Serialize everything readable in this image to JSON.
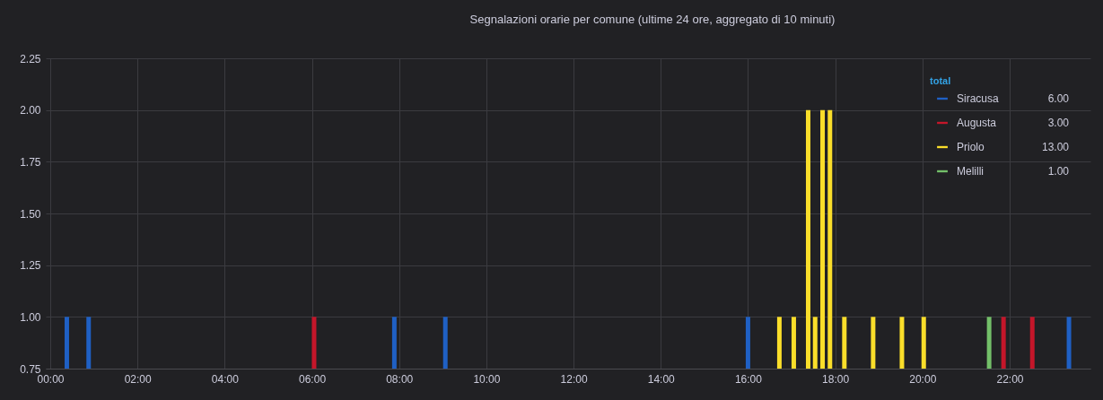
{
  "chart_data": {
    "type": "bar",
    "title": "Segnalazioni orarie per comune (ultime 24 ore, aggregato di 10 minuti)",
    "xlim": [
      0,
      23.75
    ],
    "xticks": [
      {
        "value": 0,
        "label": "00:00"
      },
      {
        "value": 2,
        "label": "02:00"
      },
      {
        "value": 4,
        "label": "04:00"
      },
      {
        "value": 6,
        "label": "06:00"
      },
      {
        "value": 8,
        "label": "08:00"
      },
      {
        "value": 10,
        "label": "10:00"
      },
      {
        "value": 12,
        "label": "12:00"
      },
      {
        "value": 14,
        "label": "14:00"
      },
      {
        "value": 16,
        "label": "16:00"
      },
      {
        "value": 18,
        "label": "18:00"
      },
      {
        "value": 20,
        "label": "20:00"
      },
      {
        "value": 22,
        "label": "22:00"
      }
    ],
    "ylim": [
      0.75,
      2.25
    ],
    "yticks": [
      {
        "value": 0.75,
        "label": "0.75"
      },
      {
        "value": 1,
        "label": "1.00"
      },
      {
        "value": 1.25,
        "label": "1.25"
      },
      {
        "value": 1.5,
        "label": "1.50"
      },
      {
        "value": 1.75,
        "label": "1.75"
      },
      {
        "value": 2,
        "label": "2.00"
      },
      {
        "value": 2.25,
        "label": "2.25"
      }
    ],
    "series": [
      {
        "name": "Siracusa",
        "color": "#1f60c4",
        "x": [
          0.38,
          0.88,
          7.89,
          9.06,
          16.0,
          23.36
        ],
        "values": [
          1,
          1,
          1,
          1,
          1,
          1
        ]
      },
      {
        "name": "Augusta",
        "color": "#c4162a",
        "x": [
          6.05,
          21.86,
          22.52
        ],
        "values": [
          1,
          1,
          1
        ]
      },
      {
        "name": "Priolo",
        "color": "#fade2a",
        "x": [
          16.72,
          17.05,
          17.38,
          17.54,
          17.71,
          17.88,
          18.21,
          18.87,
          19.53,
          20.03
        ],
        "values": [
          1,
          1,
          2,
          1,
          2,
          2,
          1,
          1,
          1,
          1
        ]
      },
      {
        "name": "Melilli",
        "color": "#73bf69",
        "x": [
          21.53
        ],
        "values": [
          1
        ]
      }
    ],
    "legend_title": "total",
    "annotations": [
      "6.00",
      "3.00",
      "13.00",
      "1.00"
    ],
    "legend": "top right",
    "grid": true
  }
}
